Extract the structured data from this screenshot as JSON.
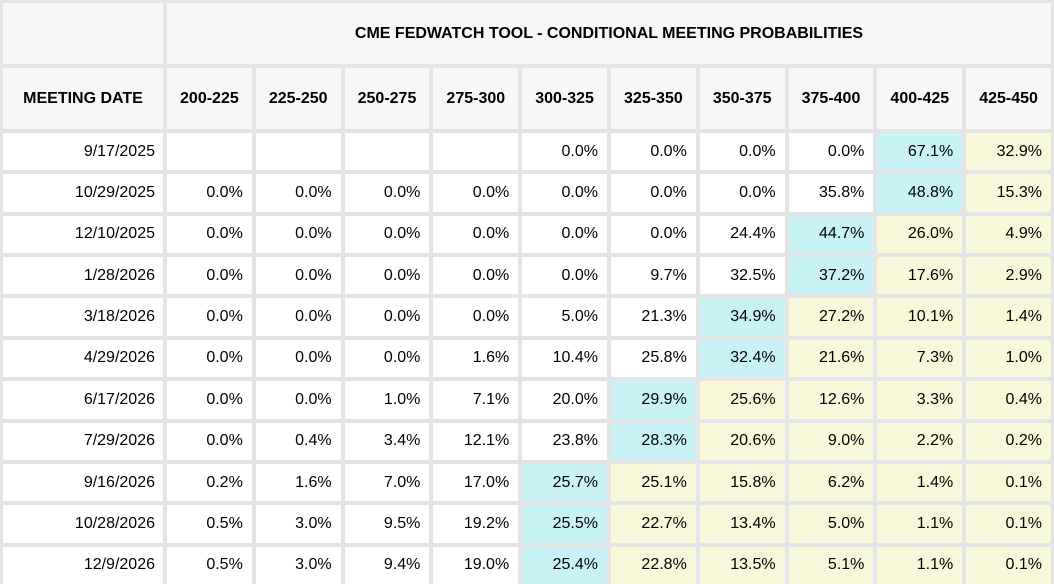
{
  "title": "CME FEDWATCH TOOL - CONDITIONAL MEETING PROBABILITIES",
  "columns": {
    "meeting_date": "MEETING DATE",
    "rate_ranges": [
      "200-225",
      "225-250",
      "250-275",
      "275-300",
      "300-325",
      "325-350",
      "350-375",
      "375-400",
      "400-425",
      "425-450"
    ]
  },
  "colors": {
    "highlight_cyan": "#c8f2f6",
    "highlight_yellow": "#f7f7d9",
    "cell_white": "#ffffff",
    "header_cell_bg": "#f7f7f8",
    "grid_line": "#e4e4e7"
  },
  "rows": [
    {
      "date": "9/17/2025",
      "values": [
        "",
        "",
        "",
        "",
        "0.0%",
        "0.0%",
        "0.0%",
        "0.0%",
        "67.1%",
        "32.9%"
      ],
      "highlight": [
        "white",
        "white",
        "white",
        "white",
        "white",
        "white",
        "white",
        "white",
        "cyan",
        "yellow"
      ]
    },
    {
      "date": "10/29/2025",
      "values": [
        "0.0%",
        "0.0%",
        "0.0%",
        "0.0%",
        "0.0%",
        "0.0%",
        "0.0%",
        "35.8%",
        "48.8%",
        "15.3%"
      ],
      "highlight": [
        "white",
        "white",
        "white",
        "white",
        "white",
        "white",
        "white",
        "white",
        "cyan",
        "yellow"
      ]
    },
    {
      "date": "12/10/2025",
      "values": [
        "0.0%",
        "0.0%",
        "0.0%",
        "0.0%",
        "0.0%",
        "0.0%",
        "24.4%",
        "44.7%",
        "26.0%",
        "4.9%"
      ],
      "highlight": [
        "white",
        "white",
        "white",
        "white",
        "white",
        "white",
        "white",
        "cyan",
        "yellow",
        "yellow"
      ]
    },
    {
      "date": "1/28/2026",
      "values": [
        "0.0%",
        "0.0%",
        "0.0%",
        "0.0%",
        "0.0%",
        "9.7%",
        "32.5%",
        "37.2%",
        "17.6%",
        "2.9%"
      ],
      "highlight": [
        "white",
        "white",
        "white",
        "white",
        "white",
        "white",
        "white",
        "cyan",
        "yellow",
        "yellow"
      ]
    },
    {
      "date": "3/18/2026",
      "values": [
        "0.0%",
        "0.0%",
        "0.0%",
        "0.0%",
        "5.0%",
        "21.3%",
        "34.9%",
        "27.2%",
        "10.1%",
        "1.4%"
      ],
      "highlight": [
        "white",
        "white",
        "white",
        "white",
        "white",
        "white",
        "cyan",
        "yellow",
        "yellow",
        "yellow"
      ]
    },
    {
      "date": "4/29/2026",
      "values": [
        "0.0%",
        "0.0%",
        "0.0%",
        "1.6%",
        "10.4%",
        "25.8%",
        "32.4%",
        "21.6%",
        "7.3%",
        "1.0%"
      ],
      "highlight": [
        "white",
        "white",
        "white",
        "white",
        "white",
        "white",
        "cyan",
        "yellow",
        "yellow",
        "yellow"
      ]
    },
    {
      "date": "6/17/2026",
      "values": [
        "0.0%",
        "0.0%",
        "1.0%",
        "7.1%",
        "20.0%",
        "29.9%",
        "25.6%",
        "12.6%",
        "3.3%",
        "0.4%"
      ],
      "highlight": [
        "white",
        "white",
        "white",
        "white",
        "white",
        "cyan",
        "yellow",
        "yellow",
        "yellow",
        "yellow"
      ]
    },
    {
      "date": "7/29/2026",
      "values": [
        "0.0%",
        "0.4%",
        "3.4%",
        "12.1%",
        "23.8%",
        "28.3%",
        "20.6%",
        "9.0%",
        "2.2%",
        "0.2%"
      ],
      "highlight": [
        "white",
        "white",
        "white",
        "white",
        "white",
        "cyan",
        "yellow",
        "yellow",
        "yellow",
        "yellow"
      ]
    },
    {
      "date": "9/16/2026",
      "values": [
        "0.2%",
        "1.6%",
        "7.0%",
        "17.0%",
        "25.7%",
        "25.1%",
        "15.8%",
        "6.2%",
        "1.4%",
        "0.1%"
      ],
      "highlight": [
        "white",
        "white",
        "white",
        "white",
        "cyan",
        "yellow",
        "yellow",
        "yellow",
        "yellow",
        "yellow"
      ]
    },
    {
      "date": "10/28/2026",
      "values": [
        "0.5%",
        "3.0%",
        "9.5%",
        "19.2%",
        "25.5%",
        "22.7%",
        "13.4%",
        "5.0%",
        "1.1%",
        "0.1%"
      ],
      "highlight": [
        "white",
        "white",
        "white",
        "white",
        "cyan",
        "yellow",
        "yellow",
        "yellow",
        "yellow",
        "yellow"
      ]
    },
    {
      "date": "12/9/2026",
      "values": [
        "0.5%",
        "3.0%",
        "9.4%",
        "19.0%",
        "25.4%",
        "22.8%",
        "13.5%",
        "5.1%",
        "1.1%",
        "0.1%"
      ],
      "highlight": [
        "white",
        "white",
        "white",
        "white",
        "cyan",
        "yellow",
        "yellow",
        "yellow",
        "yellow",
        "yellow"
      ]
    }
  ]
}
